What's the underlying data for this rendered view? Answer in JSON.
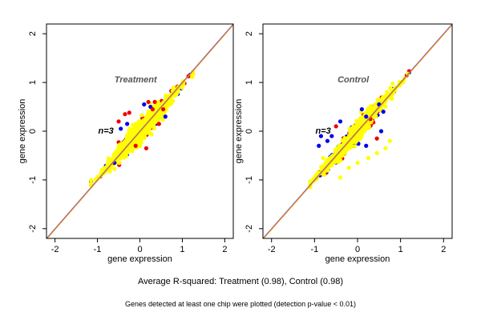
{
  "colors": {
    "frame": "#000000",
    "blue": "#0000ee",
    "red": "#ee0000",
    "yellow": "#ffff00",
    "orange_line": "#ff8c00",
    "purple_line": "#6a5acd"
  },
  "caption": {
    "main": "Average R-squared: Treatment (0.98), Control (0.98)",
    "sub": "Genes detected at least one chip were plotted (detection p-value < 0.01)"
  },
  "chart_data": [
    {
      "type": "scatter",
      "title": "Treatment",
      "annotation": "n=3",
      "xlabel": "gene expression",
      "ylabel": "gene expression",
      "xlim": [
        -2.2,
        2.2
      ],
      "ylim": [
        -2.2,
        2.2
      ],
      "xticks": [
        "-2",
        "-1",
        "0",
        "1",
        "2"
      ],
      "yticks": [
        "-2",
        "-1",
        "0",
        "1",
        "2"
      ],
      "grid": false,
      "reference_lines": [
        "y = x",
        "y = x"
      ],
      "cloud": {
        "x_range": [
          -1.15,
          1.25
        ],
        "slope": 0.95,
        "spread": 0.12,
        "colors": [
          "yellow",
          "red",
          "blue"
        ]
      },
      "outliers": [
        {
          "x": -0.5,
          "y": 0.2,
          "color": "red"
        },
        {
          "x": -0.45,
          "y": 0.05,
          "color": "blue"
        },
        {
          "x": -0.35,
          "y": 0.35,
          "color": "red"
        },
        {
          "x": -0.3,
          "y": 0.15,
          "color": "blue"
        },
        {
          "x": -0.25,
          "y": 0.38,
          "color": "red"
        },
        {
          "x": 0.1,
          "y": 0.55,
          "color": "blue"
        },
        {
          "x": 0.2,
          "y": 0.6,
          "color": "red"
        },
        {
          "x": 0.25,
          "y": 0.5,
          "color": "blue"
        },
        {
          "x": 0.3,
          "y": 0.45,
          "color": "red"
        },
        {
          "x": 0.35,
          "y": 0.6,
          "color": "red"
        },
        {
          "x": -0.1,
          "y": -0.3,
          "color": "red"
        },
        {
          "x": 0.15,
          "y": -0.35,
          "color": "red"
        },
        {
          "x": 0.45,
          "y": 0.15,
          "color": "red"
        },
        {
          "x": -0.6,
          "y": -0.65,
          "color": "blue"
        },
        {
          "x": 0.55,
          "y": 0.45,
          "color": "red"
        },
        {
          "x": 0.6,
          "y": 0.3,
          "color": "blue"
        }
      ]
    },
    {
      "type": "scatter",
      "title": "Control",
      "annotation": "n=3",
      "xlabel": "gene expression",
      "ylabel": "gene expression",
      "xlim": [
        -2.2,
        2.2
      ],
      "ylim": [
        -2.2,
        2.2
      ],
      "xticks": [
        "-2",
        "-1",
        "0",
        "1",
        "2"
      ],
      "yticks": [
        "-2",
        "-1",
        "0",
        "1",
        "2"
      ],
      "grid": false,
      "reference_lines": [
        "y = x",
        "y = x"
      ],
      "cloud": {
        "x_range": [
          -1.1,
          1.2
        ],
        "slope": 1.0,
        "spread": 0.1,
        "colors": [
          "yellow",
          "blue",
          "red"
        ]
      },
      "outliers": [
        {
          "x": -0.9,
          "y": -0.3,
          "color": "blue"
        },
        {
          "x": -0.85,
          "y": -0.1,
          "color": "blue"
        },
        {
          "x": -0.8,
          "y": -0.55,
          "color": "yellow"
        },
        {
          "x": -0.7,
          "y": -0.2,
          "color": "blue"
        },
        {
          "x": -0.6,
          "y": -0.1,
          "color": "blue"
        },
        {
          "x": -0.5,
          "y": 0.1,
          "color": "red"
        },
        {
          "x": -0.4,
          "y": 0.2,
          "color": "blue"
        },
        {
          "x": 0.1,
          "y": 0.45,
          "color": "blue"
        },
        {
          "x": 0.2,
          "y": 0.3,
          "color": "blue"
        },
        {
          "x": 0.3,
          "y": 0.25,
          "color": "red"
        },
        {
          "x": 0.5,
          "y": 0.55,
          "color": "blue"
        },
        {
          "x": 0.55,
          "y": 0.0,
          "color": "blue"
        },
        {
          "x": 0.6,
          "y": 0.4,
          "color": "blue"
        },
        {
          "x": 0.45,
          "y": -0.15,
          "color": "red"
        },
        {
          "x": 0.2,
          "y": -0.3,
          "color": "blue"
        },
        {
          "x": -0.6,
          "y": -0.7,
          "color": "yellow"
        },
        {
          "x": -0.4,
          "y": -0.95,
          "color": "yellow"
        },
        {
          "x": -0.2,
          "y": -0.75,
          "color": "yellow"
        },
        {
          "x": 0.0,
          "y": -0.65,
          "color": "yellow"
        },
        {
          "x": 0.25,
          "y": -0.55,
          "color": "yellow"
        },
        {
          "x": 0.45,
          "y": -0.45,
          "color": "yellow"
        },
        {
          "x": 0.65,
          "y": -0.35,
          "color": "yellow"
        },
        {
          "x": 0.75,
          "y": -0.2,
          "color": "yellow"
        }
      ]
    }
  ]
}
